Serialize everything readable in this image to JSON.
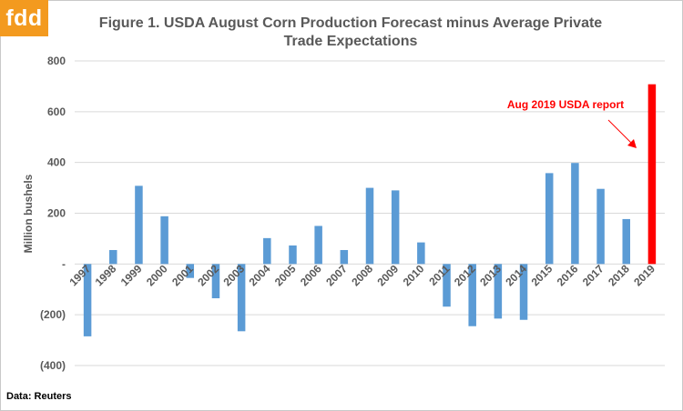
{
  "logo": {
    "text": "fdd",
    "color": "#f39a1f"
  },
  "source": "Data: Reuters",
  "chart_data": {
    "type": "bar",
    "title": "Figure 1. USDA August Corn Production Forecast minus Average Private Trade Expectations",
    "ylabel": "Million bushels",
    "xlabel": "",
    "ylim": [
      -400,
      800
    ],
    "yticks": [
      {
        "value": 800,
        "label": "800"
      },
      {
        "value": 600,
        "label": "600"
      },
      {
        "value": 400,
        "label": "400"
      },
      {
        "value": 200,
        "label": "200"
      },
      {
        "value": 0,
        "label": "-"
      },
      {
        "value": -200,
        "label": "(200)"
      },
      {
        "value": -400,
        "label": "(400)"
      }
    ],
    "grid": true,
    "categories": [
      "1997",
      "1998",
      "1999",
      "2000",
      "2001",
      "2002",
      "2003",
      "2004",
      "2005",
      "2006",
      "2007",
      "2008",
      "2009",
      "2010",
      "2011",
      "2012",
      "2013",
      "2014",
      "2015",
      "2016",
      "2017",
      "2018",
      "2019"
    ],
    "values": [
      -285,
      55,
      308,
      188,
      -55,
      -135,
      -265,
      102,
      73,
      150,
      55,
      300,
      290,
      85,
      -168,
      -245,
      -215,
      -220,
      358,
      398,
      296,
      177,
      708
    ],
    "colors": {
      "default": "#5b9bd5",
      "highlight": "#ff0000"
    },
    "highlight_category": "2019",
    "annotation": {
      "text": "Aug 2019 USDA report",
      "color": "#ff0000"
    }
  }
}
